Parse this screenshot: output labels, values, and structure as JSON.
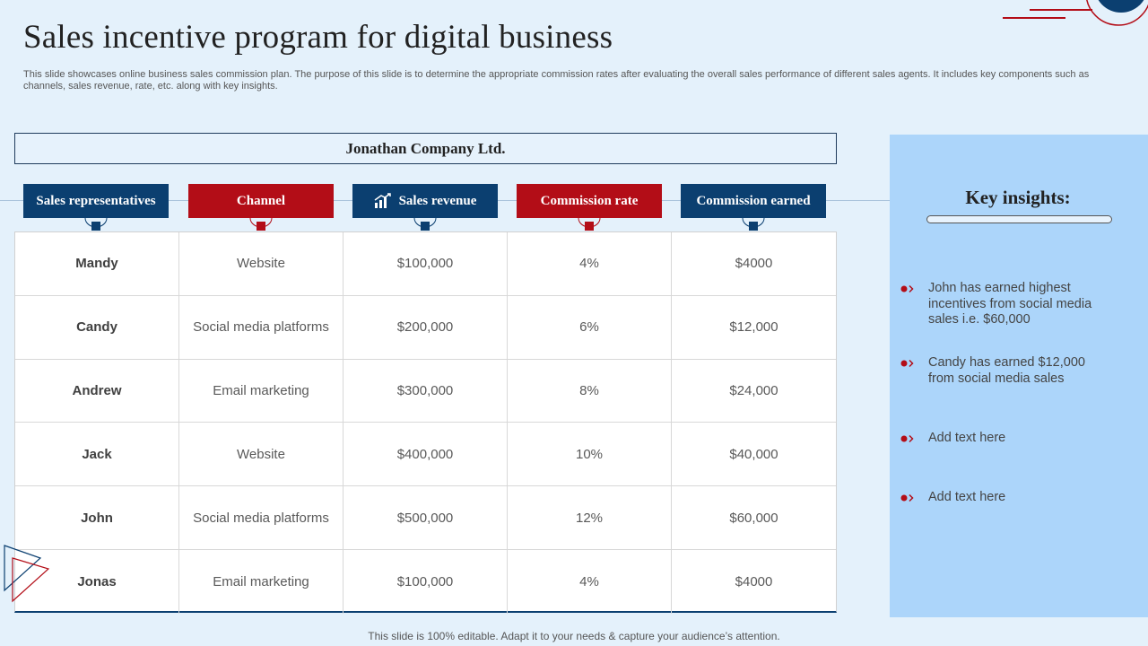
{
  "title": "Sales incentive program for digital business",
  "subtitle": "This slide showcases online business sales commission plan. The purpose of this slide is to determine the appropriate commission rates after evaluating the overall sales performance of different sales agents. It includes key components such as channels, sales revenue, rate, etc. along with key insights.",
  "company": "Jonathan Company Ltd.",
  "headers": [
    "Sales representatives",
    "Channel",
    "Sales revenue",
    "Commission rate",
    "Commission earned"
  ],
  "rows": [
    [
      "Mandy",
      "Website",
      "$100,000",
      "4%",
      "$4000"
    ],
    [
      "Candy",
      "Social media platforms",
      "$200,000",
      "6%",
      "$12,000"
    ],
    [
      "Andrew",
      "Email marketing",
      "$300,000",
      "8%",
      "$24,000"
    ],
    [
      "Jack",
      "Website",
      "$400,000",
      "10%",
      "$40,000"
    ],
    [
      "John",
      "Social media platforms",
      "$500,000",
      "12%",
      "$60,000"
    ],
    [
      "Jonas",
      "Email marketing",
      "$100,000",
      "4%",
      "$4000"
    ]
  ],
  "insights": {
    "title": "Key insights:",
    "items": [
      "John has earned highest incentives from social media sales i.e. $60,000",
      "Candy has earned $12,000 from social media sales",
      "Add text here",
      "Add text here"
    ]
  },
  "footer": "This slide is 100% editable. Adapt it to your needs & capture your audience’s attention.",
  "colors": {
    "navy": "#0b3f70",
    "red": "#b30d17",
    "panel": "#acd5fa",
    "background": "#e4f1fb"
  }
}
